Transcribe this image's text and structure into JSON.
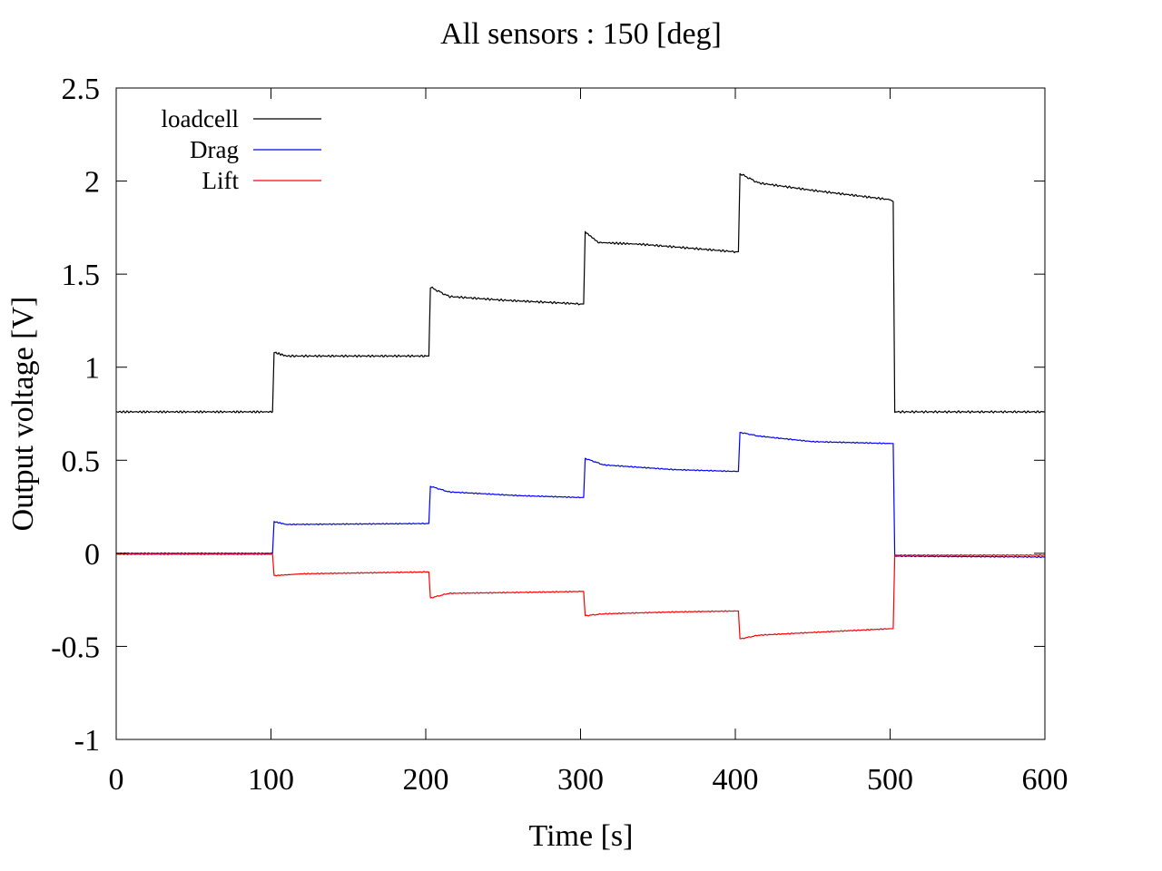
{
  "chart_data": {
    "type": "line",
    "title": "All sensors : 150 [deg]",
    "xlabel": "Time [s]",
    "ylabel": "Output voltage [V]",
    "xlim": [
      0,
      600
    ],
    "ylim": [
      -1,
      2.5
    ],
    "x_ticks": [
      0,
      100,
      200,
      300,
      400,
      500,
      600
    ],
    "x_tick_labels": [
      "0",
      "100",
      "200",
      "300",
      "400",
      "500",
      "600"
    ],
    "y_ticks": [
      -1,
      -0.5,
      0,
      0.5,
      1,
      1.5,
      2,
      2.5
    ],
    "y_tick_labels": [
      "-1",
      "-0.5",
      "0",
      "0.5",
      "1",
      "1.5",
      "2",
      "2.5"
    ],
    "grid": false,
    "legend_position": "top-left",
    "series": [
      {
        "name": "loadcell",
        "color": "#000000",
        "points": [
          [
            0,
            0.76
          ],
          [
            101,
            0.76
          ],
          [
            102,
            1.08
          ],
          [
            110,
            1.06
          ],
          [
            200,
            1.06
          ],
          [
            202,
            1.06
          ],
          [
            203,
            1.43
          ],
          [
            215,
            1.38
          ],
          [
            250,
            1.36
          ],
          [
            300,
            1.34
          ],
          [
            302,
            1.34
          ],
          [
            303,
            1.73
          ],
          [
            312,
            1.67
          ],
          [
            340,
            1.66
          ],
          [
            370,
            1.64
          ],
          [
            400,
            1.62
          ],
          [
            402,
            1.62
          ],
          [
            403,
            2.04
          ],
          [
            415,
            1.99
          ],
          [
            450,
            1.95
          ],
          [
            500,
            1.9
          ],
          [
            502,
            1.89
          ],
          [
            503,
            0.76
          ],
          [
            600,
            0.76
          ]
        ]
      },
      {
        "name": "Drag",
        "color": "#0000ff",
        "points": [
          [
            0,
            0.0
          ],
          [
            101,
            0.0
          ],
          [
            102,
            0.17
          ],
          [
            110,
            0.155
          ],
          [
            200,
            0.16
          ],
          [
            202,
            0.16
          ],
          [
            203,
            0.36
          ],
          [
            215,
            0.33
          ],
          [
            260,
            0.31
          ],
          [
            300,
            0.3
          ],
          [
            302,
            0.3
          ],
          [
            303,
            0.51
          ],
          [
            315,
            0.475
          ],
          [
            360,
            0.45
          ],
          [
            400,
            0.44
          ],
          [
            402,
            0.44
          ],
          [
            403,
            0.65
          ],
          [
            415,
            0.63
          ],
          [
            450,
            0.6
          ],
          [
            500,
            0.59
          ],
          [
            502,
            0.59
          ],
          [
            503,
            -0.015
          ],
          [
            600,
            -0.02
          ]
        ]
      },
      {
        "name": "Lift",
        "color": "#ff0000",
        "points": [
          [
            0,
            -0.005
          ],
          [
            101,
            -0.005
          ],
          [
            102,
            -0.12
          ],
          [
            120,
            -0.11
          ],
          [
            200,
            -0.1
          ],
          [
            202,
            -0.1
          ],
          [
            203,
            -0.24
          ],
          [
            215,
            -0.215
          ],
          [
            260,
            -0.21
          ],
          [
            300,
            -0.205
          ],
          [
            302,
            -0.205
          ],
          [
            303,
            -0.335
          ],
          [
            315,
            -0.325
          ],
          [
            360,
            -0.315
          ],
          [
            400,
            -0.31
          ],
          [
            402,
            -0.31
          ],
          [
            403,
            -0.46
          ],
          [
            415,
            -0.44
          ],
          [
            450,
            -0.425
          ],
          [
            500,
            -0.405
          ],
          [
            502,
            -0.405
          ],
          [
            503,
            -0.01
          ],
          [
            600,
            -0.01
          ]
        ]
      }
    ]
  }
}
